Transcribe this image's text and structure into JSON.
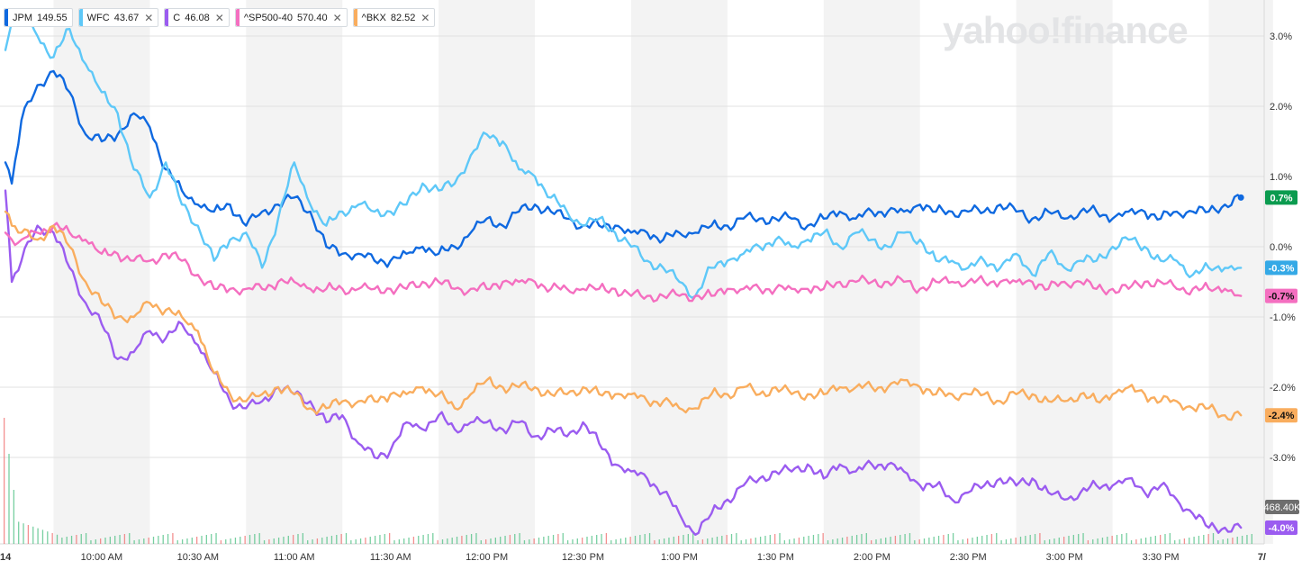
{
  "watermark": "yahoo!finance",
  "legend": [
    {
      "symbol": "JPM",
      "price": "149.55",
      "color": "#0f69e0",
      "removable": false
    },
    {
      "symbol": "WFC",
      "price": "43.67",
      "color": "#5ec8f8",
      "removable": true
    },
    {
      "symbol": "C",
      "price": "46.08",
      "color": "#9b5cf0",
      "removable": true
    },
    {
      "symbol": "^SP500-40",
      "price": "570.40",
      "color": "#f46fc0",
      "removable": true
    },
    {
      "symbol": "^BKX",
      "price": "82.52",
      "color": "#f9ad5e",
      "removable": true
    }
  ],
  "volume_label": "468.40K",
  "chart_data": {
    "type": "line",
    "title": "",
    "xlabel": "",
    "ylabel": "",
    "x_unit": "time of day",
    "x_ticks": [
      "14",
      "10:00 AM",
      "10:30 AM",
      "11:00 AM",
      "11:30 AM",
      "12:00 PM",
      "12:30 PM",
      "1:00 PM",
      "1:30 PM",
      "2:00 PM",
      "2:30 PM",
      "3:00 PM",
      "3:30 PM",
      "7/"
    ],
    "y_ticks": [
      "3.0%",
      "2.0%",
      "1.0%",
      "0.0%",
      "-1.0%",
      "-2.0%",
      "-3.0%"
    ],
    "ylim": [
      -4.2,
      3.4
    ],
    "grid": "alternating vertical bands, horizontal gridlines",
    "x": [
      "9:30",
      "9:32",
      "9:35",
      "9:40",
      "9:45",
      "9:50",
      "9:55",
      "10:00",
      "10:05",
      "10:10",
      "10:15",
      "10:20",
      "10:25",
      "10:30",
      "10:35",
      "10:40",
      "10:45",
      "10:50",
      "10:55",
      "11:00",
      "11:05",
      "11:10",
      "11:15",
      "11:20",
      "11:25",
      "11:30",
      "11:35",
      "11:40",
      "11:45",
      "11:50",
      "11:55",
      "12:00",
      "12:05",
      "12:10",
      "12:15",
      "12:20",
      "12:25",
      "12:30",
      "12:35",
      "12:40",
      "12:45",
      "12:50",
      "12:55",
      "13:00",
      "13:05",
      "13:10",
      "13:15",
      "13:20",
      "13:25",
      "13:30",
      "13:35",
      "13:40",
      "13:45",
      "13:50",
      "13:55",
      "14:00",
      "14:05",
      "14:10",
      "14:15",
      "14:20",
      "14:25",
      "14:30",
      "14:35",
      "14:40",
      "14:45",
      "14:50",
      "14:55",
      "15:00",
      "15:05",
      "15:10",
      "15:15",
      "15:20",
      "15:25",
      "15:30",
      "15:35",
      "15:40",
      "15:45",
      "15:50",
      "15:55"
    ],
    "series": [
      {
        "name": "JPM",
        "color": "#0f69e0",
        "last_label": "0.7%",
        "label_bg": "#0b9b4f",
        "values": [
          1.2,
          0.9,
          1.8,
          2.3,
          2.5,
          2.2,
          1.6,
          1.5,
          1.6,
          1.9,
          1.7,
          1.1,
          0.8,
          0.6,
          0.5,
          0.6,
          0.3,
          0.5,
          0.6,
          0.7,
          0.5,
          0.0,
          -0.1,
          -0.1,
          -0.2,
          -0.2,
          -0.1,
          0.0,
          -0.1,
          0.0,
          0.2,
          0.4,
          0.3,
          0.5,
          0.6,
          0.5,
          0.4,
          0.3,
          0.3,
          0.3,
          0.2,
          0.2,
          0.1,
          0.2,
          0.2,
          0.3,
          0.3,
          0.4,
          0.4,
          0.4,
          0.4,
          0.3,
          0.4,
          0.5,
          0.4,
          0.5,
          0.5,
          0.5,
          0.6,
          0.5,
          0.5,
          0.5,
          0.5,
          0.6,
          0.5,
          0.4,
          0.5,
          0.4,
          0.5,
          0.5,
          0.4,
          0.5,
          0.5,
          0.4,
          0.5,
          0.5,
          0.5,
          0.6,
          0.7
        ]
      },
      {
        "name": "WFC",
        "color": "#5ec8f8",
        "last_label": "-0.3%",
        "label_bg": "#35a9e6",
        "values": [
          2.8,
          3.2,
          3.3,
          3.0,
          2.7,
          3.1,
          2.6,
          2.2,
          1.9,
          1.1,
          0.7,
          1.2,
          0.6,
          0.3,
          -0.2,
          0.1,
          0.2,
          -0.3,
          0.4,
          1.2,
          0.6,
          0.3,
          0.5,
          0.6,
          0.5,
          0.5,
          0.6,
          0.9,
          0.8,
          0.9,
          1.3,
          1.6,
          1.5,
          1.1,
          1.0,
          0.7,
          0.5,
          0.3,
          0.4,
          0.2,
          0.0,
          -0.2,
          -0.3,
          -0.5,
          -0.7,
          -0.3,
          -0.2,
          -0.1,
          0.0,
          0.1,
          0.0,
          0.1,
          0.2,
          0.0,
          0.2,
          0.1,
          0.0,
          0.2,
          0.1,
          -0.2,
          -0.2,
          -0.3,
          -0.2,
          -0.3,
          -0.1,
          -0.4,
          -0.1,
          -0.3,
          -0.2,
          -0.2,
          0.0,
          0.1,
          0.0,
          -0.2,
          -0.2,
          -0.4,
          -0.3,
          -0.3,
          -0.3
        ]
      },
      {
        "name": "C",
        "color": "#9b5cf0",
        "last_label": "-4.0%",
        "label_bg": "#9b5cf0",
        "values": [
          0.8,
          -0.5,
          -0.2,
          0.3,
          0.2,
          -0.3,
          -0.8,
          -1.1,
          -1.6,
          -1.5,
          -1.2,
          -1.3,
          -1.1,
          -1.4,
          -1.8,
          -2.2,
          -2.3,
          -2.2,
          -2.0,
          -2.1,
          -2.2,
          -2.5,
          -2.4,
          -2.8,
          -3.0,
          -2.9,
          -2.5,
          -2.6,
          -2.4,
          -2.6,
          -2.5,
          -2.5,
          -2.6,
          -2.5,
          -2.7,
          -2.6,
          -2.7,
          -2.5,
          -2.8,
          -3.1,
          -3.2,
          -3.3,
          -3.5,
          -3.8,
          -4.1,
          -3.8,
          -3.6,
          -3.4,
          -3.3,
          -3.2,
          -3.2,
          -3.1,
          -3.3,
          -3.1,
          -3.2,
          -3.1,
          -3.1,
          -3.2,
          -3.4,
          -3.4,
          -3.6,
          -3.5,
          -3.4,
          -3.3,
          -3.4,
          -3.3,
          -3.5,
          -3.6,
          -3.5,
          -3.4,
          -3.4,
          -3.3,
          -3.5,
          -3.4,
          -3.6,
          -3.8,
          -4.0,
          -4.0,
          -4.0
        ]
      },
      {
        "name": "^SP500-40",
        "color": "#f46fc0",
        "last_label": "-0.7%",
        "label_bg": "#f46fc0",
        "values": [
          0.2,
          0.1,
          0.1,
          0.2,
          0.3,
          0.2,
          0.1,
          -0.1,
          -0.1,
          -0.2,
          -0.2,
          -0.1,
          -0.2,
          -0.4,
          -0.6,
          -0.6,
          -0.6,
          -0.6,
          -0.5,
          -0.5,
          -0.6,
          -0.6,
          -0.6,
          -0.6,
          -0.6,
          -0.6,
          -0.6,
          -0.5,
          -0.5,
          -0.6,
          -0.6,
          -0.6,
          -0.5,
          -0.5,
          -0.5,
          -0.6,
          -0.6,
          -0.6,
          -0.6,
          -0.6,
          -0.7,
          -0.7,
          -0.7,
          -0.7,
          -0.7,
          -0.7,
          -0.6,
          -0.6,
          -0.6,
          -0.6,
          -0.6,
          -0.6,
          -0.6,
          -0.5,
          -0.5,
          -0.5,
          -0.5,
          -0.5,
          -0.6,
          -0.5,
          -0.5,
          -0.5,
          -0.5,
          -0.5,
          -0.5,
          -0.5,
          -0.6,
          -0.5,
          -0.5,
          -0.6,
          -0.6,
          -0.6,
          -0.5,
          -0.5,
          -0.6,
          -0.6,
          -0.6,
          -0.6,
          -0.7
        ]
      },
      {
        "name": "^BKX",
        "color": "#f9ad5e",
        "last_label": "-2.4%",
        "label_bg": "#f9ad5e",
        "values": [
          0.5,
          0.3,
          0.2,
          0.1,
          0.3,
          0.0,
          -0.5,
          -0.8,
          -1.0,
          -1.0,
          -0.8,
          -0.9,
          -1.0,
          -1.2,
          -1.8,
          -2.1,
          -2.2,
          -2.1,
          -2.0,
          -2.1,
          -2.3,
          -2.3,
          -2.2,
          -2.2,
          -2.2,
          -2.1,
          -2.1,
          -2.0,
          -2.1,
          -2.3,
          -2.1,
          -1.9,
          -2.0,
          -2.0,
          -2.0,
          -2.1,
          -2.1,
          -2.0,
          -2.1,
          -2.1,
          -2.1,
          -2.2,
          -2.2,
          -2.3,
          -2.3,
          -2.1,
          -2.1,
          -2.0,
          -2.1,
          -2.0,
          -2.1,
          -2.1,
          -2.1,
          -2.0,
          -2.0,
          -2.0,
          -2.0,
          -1.9,
          -2.0,
          -2.1,
          -2.1,
          -2.1,
          -2.1,
          -2.2,
          -2.1,
          -2.1,
          -2.2,
          -2.2,
          -2.1,
          -2.2,
          -2.1,
          -2.0,
          -2.1,
          -2.2,
          -2.2,
          -2.3,
          -2.3,
          -2.4,
          -2.4
        ]
      }
    ]
  }
}
